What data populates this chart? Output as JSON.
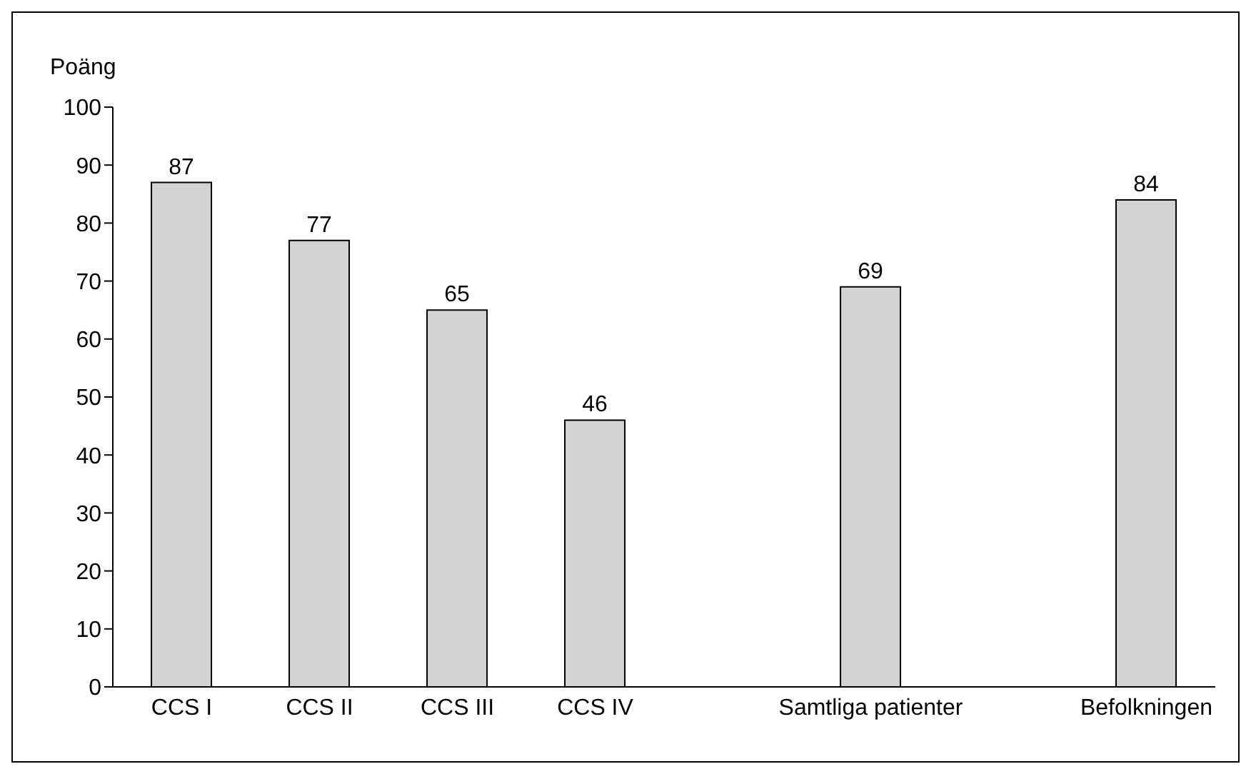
{
  "chart_data": {
    "type": "bar",
    "ylabel": "Poäng",
    "categories": [
      "CCS I",
      "CCS II",
      "CCS III",
      "CCS IV",
      null,
      "Samtliga patienter",
      null,
      "Befolkningen"
    ],
    "values": [
      87,
      77,
      65,
      46,
      null,
      69,
      null,
      84
    ],
    "color": "#d3d3d3",
    "ylim": [
      0,
      100
    ],
    "yticks": [
      0,
      10,
      20,
      30,
      40,
      50,
      60,
      70,
      80,
      90,
      100
    ],
    "data_labels": true,
    "grid": false
  }
}
